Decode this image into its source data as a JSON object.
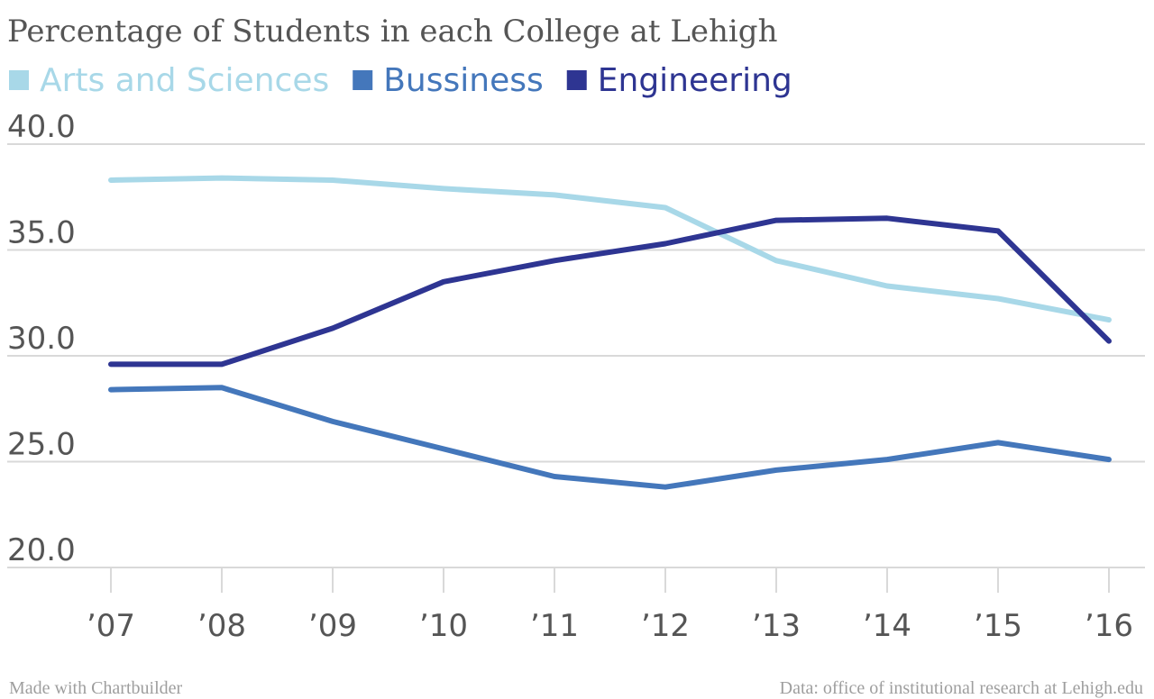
{
  "chart_data": {
    "type": "line",
    "title": "Percentage of Students in each College at Lehigh",
    "categories": [
      "’07",
      "’08",
      "’09",
      "’10",
      "’11",
      "’12",
      "’13",
      "’14",
      "’15",
      "’16"
    ],
    "series": [
      {
        "name": "Arts and Sciences",
        "color": "#a8d8e8",
        "values": [
          38.3,
          38.4,
          38.3,
          37.9,
          37.6,
          37.0,
          34.5,
          33.3,
          32.7,
          31.7
        ]
      },
      {
        "name": "Bussiness",
        "color": "#4477bb",
        "values": [
          28.4,
          28.5,
          26.9,
          25.6,
          24.3,
          23.8,
          24.6,
          25.1,
          25.9,
          25.1
        ]
      },
      {
        "name": "Engineering",
        "color": "#2e3592",
        "values": [
          29.6,
          29.6,
          31.3,
          33.5,
          34.5,
          35.3,
          36.4,
          36.5,
          35.9,
          30.7
        ]
      }
    ],
    "ylim": [
      20,
      40
    ],
    "yticks": [
      "40.0",
      "35.0",
      "30.0",
      "25.0",
      "20.0"
    ],
    "grid": true,
    "legend": "top-left"
  },
  "footer": {
    "left": "Made with Chartbuilder",
    "right": "Data: office of institutional research at Lehigh.edu"
  }
}
